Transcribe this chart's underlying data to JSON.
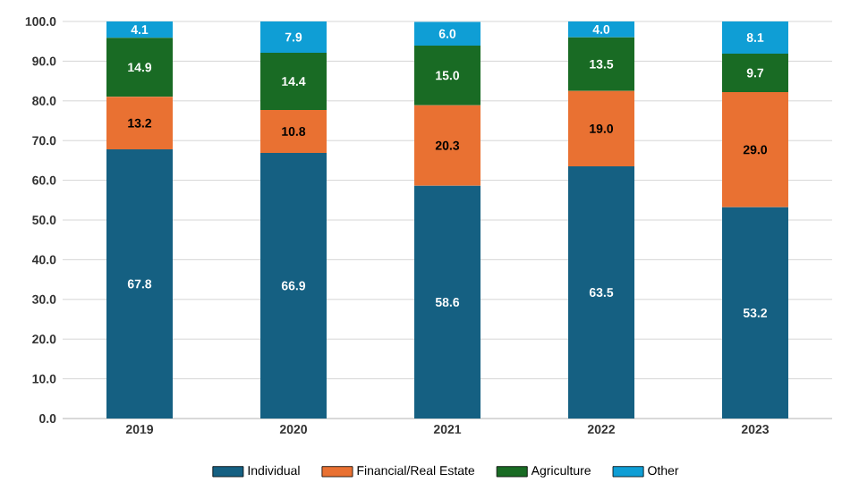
{
  "chart_data": {
    "type": "bar",
    "stacked": true,
    "categories": [
      "2019",
      "2020",
      "2021",
      "2022",
      "2023"
    ],
    "series": [
      {
        "name": "Individual",
        "color": "#156082",
        "values": [
          67.8,
          66.9,
          58.6,
          63.5,
          53.2
        ],
        "value_labels": [
          "67.8",
          "66.9",
          "58.6",
          "63.5",
          "53.2"
        ]
      },
      {
        "name": "Financial/Real Estate",
        "color": "#e97132",
        "values": [
          13.2,
          10.8,
          20.3,
          19.0,
          29.0
        ],
        "value_labels": [
          "13.2",
          "10.8",
          "20.3",
          "19.0",
          "29.0"
        ]
      },
      {
        "name": "Agriculture",
        "color": "#196b24",
        "values": [
          14.9,
          14.4,
          15.0,
          13.5,
          9.7
        ],
        "value_labels": [
          "14.9",
          "14.4",
          "15.0",
          "13.5",
          "9.7"
        ]
      },
      {
        "name": "Other",
        "color": "#0f9ed5",
        "values": [
          4.1,
          7.9,
          6.0,
          4.0,
          8.1
        ],
        "value_labels": [
          "4.1",
          "7.9",
          "6.0",
          "4.0",
          "8.1"
        ]
      }
    ],
    "ylim": [
      0,
      100
    ],
    "yticks": [
      {
        "value": 0,
        "label": "0.0"
      },
      {
        "value": 10,
        "label": "10.0"
      },
      {
        "value": 20,
        "label": "20.0"
      },
      {
        "value": 30,
        "label": "30.0"
      },
      {
        "value": 40,
        "label": "40.0"
      },
      {
        "value": 50,
        "label": "50.0"
      },
      {
        "value": 60,
        "label": "60.0"
      },
      {
        "value": 70,
        "label": "70.0"
      },
      {
        "value": 80,
        "label": "80.0"
      },
      {
        "value": 90,
        "label": "90.0"
      },
      {
        "value": 100,
        "label": "100.0"
      }
    ],
    "grid": "y",
    "legend": "bottom"
  }
}
